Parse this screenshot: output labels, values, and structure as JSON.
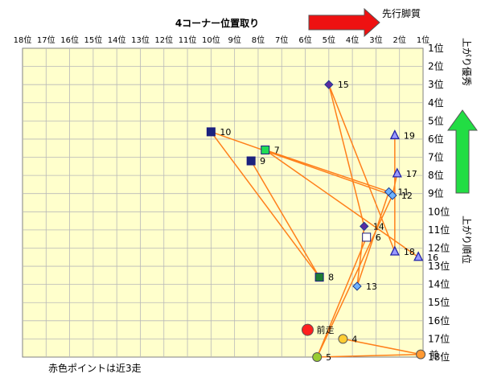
{
  "header": {
    "title": "4コーナー位置取り",
    "arrow_label": "先行脚質"
  },
  "side": {
    "top_label": "上がり優秀",
    "bottom_label": "上がり順位"
  },
  "footer": {
    "note": "赤色ポイントは近3走"
  },
  "chart_data": {
    "type": "scatter",
    "title": "4コーナー位置取り",
    "xlabel": "先行脚質",
    "ylabel": "上がり順位",
    "x_axis_reversed": true,
    "xlim": [
      1,
      18
    ],
    "ylim": [
      1,
      18
    ],
    "x_ticks": [
      "18位",
      "17位",
      "16位",
      "15位",
      "14位",
      "13位",
      "12位",
      "11位",
      "10位",
      "9位",
      "8位",
      "7位",
      "6位",
      "5位",
      "4位",
      "3位",
      "2位",
      "1位"
    ],
    "y_ticks": [
      "1位",
      "2位",
      "3位",
      "4位",
      "5位",
      "6位",
      "7位",
      "8位",
      "9位",
      "10位",
      "11位",
      "12位",
      "13位",
      "14位",
      "15位",
      "16位",
      "17位",
      "18位"
    ],
    "points": [
      {
        "label": "15",
        "x": 5.0,
        "y": 3.0,
        "shape": "diamond",
        "color": "#5a2ca0"
      },
      {
        "label": "10",
        "x": 10.0,
        "y": 5.6,
        "shape": "square",
        "color": "#1a237e"
      },
      {
        "label": "7",
        "x": 7.7,
        "y": 6.6,
        "shape": "square",
        "color": "#22dd55"
      },
      {
        "label": "9",
        "x": 8.3,
        "y": 7.2,
        "shape": "square",
        "color": "#1a237e"
      },
      {
        "label": "19",
        "x": 2.2,
        "y": 5.8,
        "shape": "triangle",
        "color": "#9999ff"
      },
      {
        "label": "17",
        "x": 2.1,
        "y": 7.9,
        "shape": "triangle",
        "color": "#9999ff"
      },
      {
        "label": "11",
        "x": 2.45,
        "y": 8.9,
        "shape": "diamond",
        "color": "#6fb2ff"
      },
      {
        "label": "12",
        "x": 2.3,
        "y": 9.1,
        "shape": "diamond",
        "color": "#6fb2ff"
      },
      {
        "label": "14",
        "x": 3.5,
        "y": 10.8,
        "shape": "diamond",
        "color": "#5a2ca0"
      },
      {
        "label": "6",
        "x": 3.4,
        "y": 11.4,
        "shape": "square",
        "color": "#ffffff"
      },
      {
        "label": "18",
        "x": 2.2,
        "y": 12.2,
        "shape": "triangle",
        "color": "#9999ff"
      },
      {
        "label": "16",
        "x": 1.2,
        "y": 12.5,
        "shape": "triangle",
        "color": "#9999ff"
      },
      {
        "label": "13",
        "x": 3.8,
        "y": 14.1,
        "shape": "diamond",
        "color": "#6fb2ff"
      },
      {
        "label": "8",
        "x": 5.4,
        "y": 13.6,
        "shape": "square",
        "color": "#1e7d32"
      },
      {
        "label": "前走",
        "x": 5.9,
        "y": 16.5,
        "shape": "circle",
        "color": "#ff1f1f"
      },
      {
        "label": "4",
        "x": 4.4,
        "y": 17.0,
        "shape": "circle",
        "color": "#ffcc33"
      },
      {
        "label": "5",
        "x": 5.5,
        "y": 18.0,
        "shape": "circle",
        "color": "#99cc33"
      },
      {
        "label": "前",
        "x": 1.1,
        "y": 17.85,
        "shape": "circle",
        "color": "#ff9933"
      }
    ],
    "link_color": "#ff7f1a",
    "links": [
      [
        "15",
        "14"
      ],
      [
        "15",
        "18"
      ],
      [
        "10",
        "12"
      ],
      [
        "10",
        "8"
      ],
      [
        "7",
        "11"
      ],
      [
        "7",
        "16"
      ],
      [
        "9",
        "8"
      ],
      [
        "19",
        "18"
      ],
      [
        "17",
        "12"
      ],
      [
        "11",
        "13"
      ],
      [
        "12",
        "5"
      ],
      [
        "6",
        "5"
      ],
      [
        "14",
        "13"
      ],
      [
        "4",
        "前"
      ],
      [
        "5",
        "前"
      ]
    ],
    "grid": true,
    "plot_background": "#ffffcc"
  }
}
